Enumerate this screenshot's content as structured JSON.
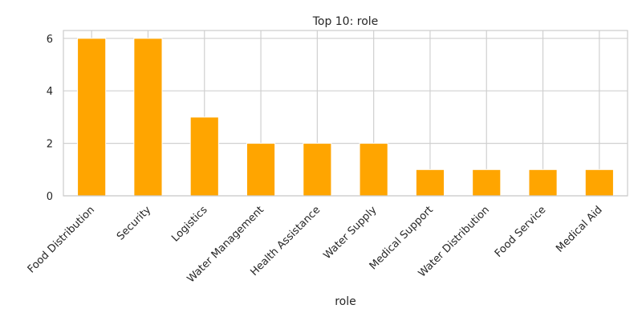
{
  "chart_data": {
    "type": "bar",
    "title": "Top 10: role",
    "xlabel": "role",
    "ylabel": "",
    "categories": [
      "Food Distribution",
      "Security",
      "Logistics",
      "Water Management",
      "Health Assistance",
      "Water Supply",
      "Medical Support",
      "Water Distribution",
      "Food Service",
      "Medical Aid"
    ],
    "values": [
      6,
      6,
      3,
      2,
      2,
      2,
      1,
      1,
      1,
      1
    ],
    "ylim": [
      0,
      6.3
    ],
    "yticks": [
      0,
      2,
      4,
      6
    ],
    "grid": true,
    "bar_color": "#FFA500",
    "grid_color": "#d0d0d0",
    "frame_color": "#cccccc"
  }
}
